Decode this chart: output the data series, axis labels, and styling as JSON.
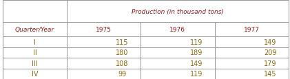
{
  "title": "Production (in thousand tons)",
  "col_header": "Quarter/Year",
  "years": [
    "1975",
    "1976",
    "1977"
  ],
  "quarters": [
    "I",
    "II",
    "III",
    "IV"
  ],
  "data": [
    [
      115,
      119,
      149
    ],
    [
      180,
      189,
      209
    ],
    [
      108,
      149,
      179
    ],
    [
      99,
      119,
      145
    ]
  ],
  "header_color": "#8B1A1A",
  "cell_text_color": "#8B6914",
  "border_color": "#999999",
  "bg_color": "#ffffff",
  "title_fontstyle": "italic",
  "header_fontstyle": "italic"
}
